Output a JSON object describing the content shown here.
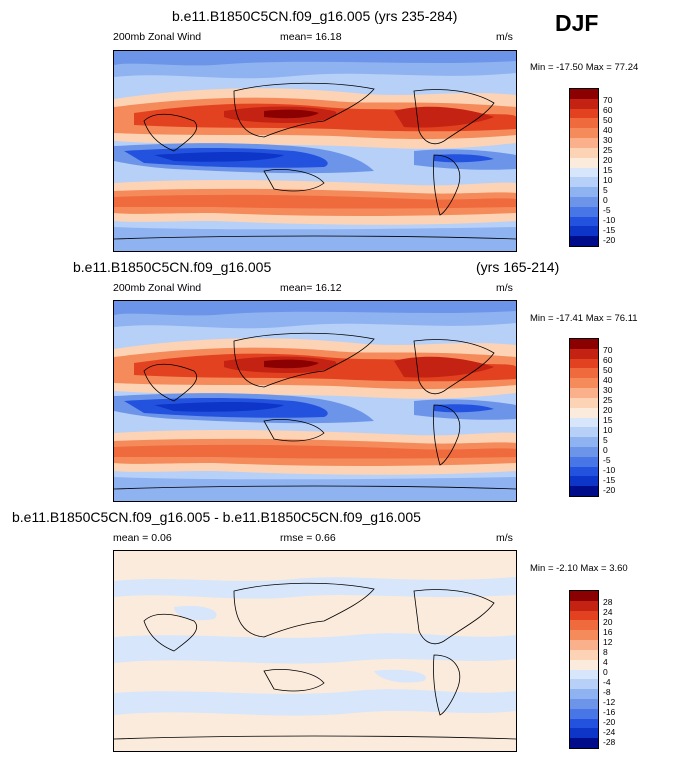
{
  "season": "DJF",
  "panels": [
    {
      "title": "b.e11.B1850C5CN.f09_g16.005 (yrs 235-284)",
      "variable": "200mb Zonal Wind",
      "stat_text": "mean=  16.18",
      "units": "m/s",
      "minmax": "Min = -17.50 Max =  77.24",
      "colorbar": {
        "labels": [
          "70",
          "60",
          "50",
          "40",
          "30",
          "25",
          "20",
          "15",
          "10",
          "5",
          "0",
          "-5",
          "-10",
          "-15",
          "-20"
        ],
        "colors": [
          "#8b0000",
          "#c42212",
          "#e2421f",
          "#ef6a3d",
          "#f58a5a",
          "#fbb08c",
          "#fdd3b6",
          "#fbebdc",
          "#d7e6fb",
          "#b7d0f7",
          "#8fb2f0",
          "#6c95ea",
          "#4876e6",
          "#2353de",
          "#0d35c8",
          "#000d8a"
        ]
      }
    },
    {
      "title_left": "b.e11.B1850C5CN.f09_g16.005",
      "title_right": "(yrs 165-214)",
      "variable": "200mb Zonal Wind",
      "stat_text": "mean=  16.12",
      "units": "m/s",
      "minmax": "Min = -17.41 Max =  76.11",
      "colorbar": {
        "labels": [
          "70",
          "60",
          "50",
          "40",
          "30",
          "25",
          "20",
          "15",
          "10",
          "5",
          "0",
          "-5",
          "-10",
          "-15",
          "-20"
        ],
        "colors": [
          "#8b0000",
          "#c42212",
          "#e2421f",
          "#ef6a3d",
          "#f58a5a",
          "#fbb08c",
          "#fdd3b6",
          "#fbebdc",
          "#d7e6fb",
          "#b7d0f7",
          "#8fb2f0",
          "#6c95ea",
          "#4876e6",
          "#2353de",
          "#0d35c8",
          "#000d8a"
        ]
      }
    },
    {
      "title": "b.e11.B1850C5CN.f09_g16.005 - b.e11.B1850C5CN.f09_g16.005",
      "stat_text": "mean =  0.06",
      "rmse_text": "rmse =  0.66",
      "units": "m/s",
      "minmax": "Min =  -2.10 Max =   3.60",
      "colorbar": {
        "labels": [
          "28",
          "24",
          "20",
          "16",
          "12",
          "8",
          "4",
          "0",
          "-4",
          "-8",
          "-12",
          "-16",
          "-20",
          "-24",
          "-28"
        ],
        "colors": [
          "#8b0000",
          "#c42212",
          "#e2421f",
          "#ef6a3d",
          "#f58a5a",
          "#fbb08c",
          "#fdd3b6",
          "#fbebdc",
          "#d7e6fb",
          "#b7d0f7",
          "#8fb2f0",
          "#6c95ea",
          "#4876e6",
          "#2353de",
          "#0d35c8",
          "#000d8a"
        ]
      }
    }
  ]
}
